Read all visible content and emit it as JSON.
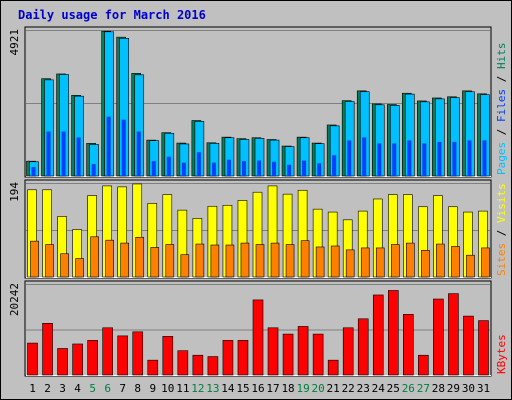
{
  "chart_data": {
    "type": "bar",
    "title": "Daily usage for March 2016",
    "colors": {
      "background": "#c0c0c0",
      "plot": "#c0c0c0",
      "hits": "#00805c",
      "files": "#00c0ff",
      "pages": "#0040ff",
      "visits": "#ffff00",
      "sites": "#ff8000",
      "kbytes": "#ff0000",
      "weekend_label": "#008040",
      "weekday_label": "#000000"
    },
    "days": [
      {
        "label": "1",
        "weekend": false
      },
      {
        "label": "2",
        "weekend": false
      },
      {
        "label": "3",
        "weekend": false
      },
      {
        "label": "4",
        "weekend": false
      },
      {
        "label": "5",
        "weekend": true
      },
      {
        "label": "6",
        "weekend": true
      },
      {
        "label": "7",
        "weekend": false
      },
      {
        "label": "8",
        "weekend": false
      },
      {
        "label": "9",
        "weekend": false
      },
      {
        "label": "10",
        "weekend": false
      },
      {
        "label": "11",
        "weekend": false
      },
      {
        "label": "12",
        "weekend": true
      },
      {
        "label": "13",
        "weekend": true
      },
      {
        "label": "14",
        "weekend": false
      },
      {
        "label": "15",
        "weekend": false
      },
      {
        "label": "16",
        "weekend": false
      },
      {
        "label": "17",
        "weekend": false
      },
      {
        "label": "18",
        "weekend": false
      },
      {
        "label": "19",
        "weekend": true
      },
      {
        "label": "20",
        "weekend": true
      },
      {
        "label": "21",
        "weekend": false
      },
      {
        "label": "22",
        "weekend": false
      },
      {
        "label": "23",
        "weekend": false
      },
      {
        "label": "24",
        "weekend": false
      },
      {
        "label": "25",
        "weekend": false
      },
      {
        "label": "26",
        "weekend": true
      },
      {
        "label": "27",
        "weekend": true
      },
      {
        "label": "28",
        "weekend": false
      },
      {
        "label": "29",
        "weekend": false
      },
      {
        "label": "30",
        "weekend": false
      },
      {
        "label": "31",
        "weekend": false
      }
    ],
    "panels": [
      {
        "key": "top",
        "ymax": 4921,
        "ymax_label": "4921",
        "side_label": [
          {
            "text": "Pages",
            "color": "#00c0ff"
          },
          {
            "text": " / ",
            "color": "#000000"
          },
          {
            "text": "Files",
            "color": "#0040ff"
          },
          {
            "text": " / ",
            "color": "#000000"
          },
          {
            "text": "Hits",
            "color": "#00805c"
          }
        ],
        "series": [
          {
            "name": "Hits",
            "color": "#00805c",
            "values": [
              500,
              3280,
              3440,
              2720,
              1100,
              4880,
              4680,
              3460,
              1210,
              1460,
              1110,
              1870,
              1120,
              1310,
              1260,
              1290,
              1230,
              1010,
              1310,
              1110,
              1720,
              2540,
              2870,
              2430,
              2410,
              2790,
              2530,
              2630,
              2670,
              2870,
              2770
            ]
          },
          {
            "name": "Files",
            "color": "#00c0ff",
            "values": [
              480,
              3240,
              3420,
              2690,
              1060,
              4860,
              4640,
              3410,
              1190,
              1440,
              1080,
              1840,
              1100,
              1290,
              1230,
              1270,
              1210,
              990,
              1290,
              1090,
              1690,
              2510,
              2840,
              2400,
              2380,
              2760,
              2500,
              2600,
              2640,
              2840,
              2740
            ]
          },
          {
            "name": "Pages",
            "color": "#0040ff",
            "values": [
              300,
              1500,
              1500,
              1300,
              400,
              2000,
              1900,
              1500,
              500,
              650,
              450,
              800,
              450,
              550,
              500,
              520,
              480,
              380,
              520,
              430,
              700,
              1200,
              1300,
              1100,
              1100,
              1200,
              1100,
              1150,
              1150,
              1200,
              1200
            ]
          }
        ]
      },
      {
        "key": "mid",
        "ymax": 194,
        "ymax_label": "194",
        "side_label": [
          {
            "text": "Sites",
            "color": "#ff8000"
          },
          {
            "text": " / ",
            "color": "#000000"
          },
          {
            "text": "Visits",
            "color": "#ffff00"
          }
        ],
        "series": [
          {
            "name": "Visits",
            "color": "#ffff00",
            "values": [
              180,
              180,
              125,
              98,
              168,
              188,
              186,
              192,
              152,
              170,
              138,
              121,
              146,
              148,
              158,
              175,
              188,
              171,
              179,
              140,
              134,
              118,
              136,
              161,
              170,
              170,
              145,
              168,
              145,
              134,
              136
            ]
          },
          {
            "name": "Sites",
            "color": "#ff8000",
            "values": [
              74,
              67,
              48,
              38,
              83,
              76,
              70,
              82,
              61,
              67,
              46,
              68,
              66,
              66,
              70,
              67,
              70,
              67,
              75,
              62,
              64,
              56,
              60,
              60,
              67,
              70,
              55,
              68,
              63,
              45,
              60
            ]
          }
        ]
      },
      {
        "key": "bot",
        "ymax": 20242,
        "ymax_label": "20242",
        "side_label": [
          {
            "text": "KBytes",
            "color": "#ff0000"
          }
        ],
        "series": [
          {
            "name": "KBytes",
            "color": "#ff0000",
            "values": [
              7100,
              11500,
              5900,
              6900,
              7700,
              10500,
              8700,
              9600,
              3300,
              8600,
              5400,
              4400,
              4100,
              7700,
              7700,
              16700,
              10500,
              9100,
              10800,
              9100,
              3300,
              10500,
              12500,
              17800,
              18800,
              13500,
              4400,
              16900,
              18100,
              13100,
              12100
            ]
          }
        ]
      }
    ]
  }
}
